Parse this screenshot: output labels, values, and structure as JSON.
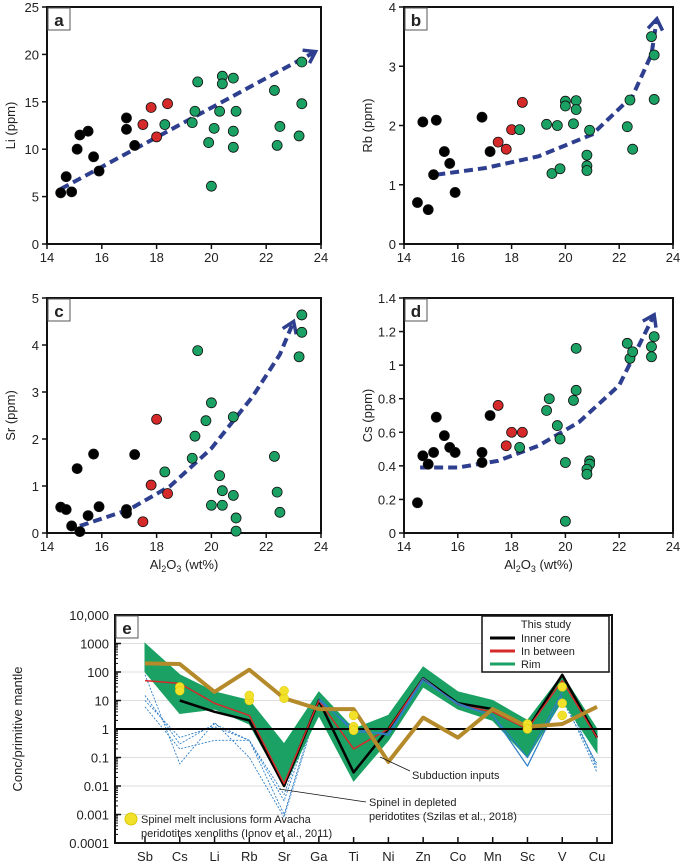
{
  "colors": {
    "inner_core": "#000000",
    "in_between": "#d62a2a",
    "rim": "#1aa163",
    "trend": "#2f3f8f",
    "subduction": "#b58a2a",
    "spinel": "#2f7fc7",
    "melt_inclusion": "#f2e12a"
  },
  "chart_data": [
    {
      "type": "scatter",
      "panel": "a",
      "xlabel": "",
      "ylabel": "Li (ppm)",
      "xlim": [
        14,
        24
      ],
      "ylim": [
        0,
        25
      ],
      "xticks": [
        14,
        16,
        18,
        20,
        22,
        24
      ],
      "yticks": [
        0,
        5,
        10,
        15,
        20,
        25
      ],
      "series": [
        {
          "name": "Inner core",
          "points": [
            [
              14.5,
              5.4
            ],
            [
              14.7,
              7.1
            ],
            [
              14.9,
              5.5
            ],
            [
              15.1,
              10.0
            ],
            [
              15.2,
              11.5
            ],
            [
              15.5,
              11.9
            ],
            [
              15.7,
              9.2
            ],
            [
              15.9,
              7.7
            ],
            [
              16.9,
              13.3
            ],
            [
              16.9,
              12.1
            ],
            [
              17.2,
              10.4
            ]
          ]
        },
        {
          "name": "In between",
          "points": [
            [
              17.5,
              12.6
            ],
            [
              17.8,
              14.4
            ],
            [
              18.0,
              11.3
            ],
            [
              18.4,
              14.8
            ]
          ]
        },
        {
          "name": "Rim",
          "points": [
            [
              18.3,
              12.6
            ],
            [
              19.3,
              12.8
            ],
            [
              19.4,
              14.0
            ],
            [
              19.5,
              17.1
            ],
            [
              19.9,
              10.7
            ],
            [
              20.0,
              6.1
            ],
            [
              20.1,
              12.2
            ],
            [
              20.3,
              14.0
            ],
            [
              20.4,
              17.7
            ],
            [
              20.4,
              16.9
            ],
            [
              20.8,
              17.5
            ],
            [
              20.8,
              11.9
            ],
            [
              20.8,
              10.2
            ],
            [
              20.9,
              14.0
            ],
            [
              22.3,
              16.2
            ],
            [
              22.4,
              10.4
            ],
            [
              22.5,
              12.4
            ],
            [
              23.2,
              11.4
            ],
            [
              23.3,
              14.8
            ],
            [
              23.3,
              19.2
            ]
          ]
        }
      ],
      "trend": [
        [
          14.5,
          5.8
        ],
        [
          23.8,
          20.3
        ]
      ]
    },
    {
      "type": "scatter",
      "panel": "b",
      "xlabel": "",
      "ylabel": "Rb (ppm)",
      "xlim": [
        14,
        24
      ],
      "ylim": [
        0,
        4
      ],
      "xticks": [
        14,
        16,
        18,
        20,
        22,
        24
      ],
      "yticks": [
        0,
        1,
        2,
        3,
        4
      ],
      "series": [
        {
          "name": "Inner core",
          "points": [
            [
              14.5,
              0.7
            ],
            [
              14.7,
              2.06
            ],
            [
              14.9,
              0.58
            ],
            [
              15.1,
              1.17
            ],
            [
              15.2,
              2.09
            ],
            [
              15.5,
              1.56
            ],
            [
              15.7,
              1.36
            ],
            [
              15.9,
              0.87
            ],
            [
              16.9,
              2.14
            ],
            [
              17.2,
              1.56
            ]
          ]
        },
        {
          "name": "In between",
          "points": [
            [
              17.5,
              1.72
            ],
            [
              17.8,
              1.6
            ],
            [
              18.0,
              1.93
            ],
            [
              18.4,
              2.39
            ]
          ]
        },
        {
          "name": "Rim",
          "points": [
            [
              18.3,
              1.93
            ],
            [
              19.3,
              2.02
            ],
            [
              19.5,
              1.19
            ],
            [
              19.7,
              2.0
            ],
            [
              19.8,
              1.27
            ],
            [
              20.0,
              2.41
            ],
            [
              20.0,
              2.33
            ],
            [
              20.3,
              2.03
            ],
            [
              20.4,
              2.42
            ],
            [
              20.4,
              2.27
            ],
            [
              20.8,
              1.5
            ],
            [
              20.8,
              1.32
            ],
            [
              20.8,
              1.24
            ],
            [
              20.9,
              1.92
            ],
            [
              22.3,
              1.98
            ],
            [
              22.4,
              2.43
            ],
            [
              22.5,
              1.6
            ],
            [
              23.2,
              3.5
            ],
            [
              23.3,
              3.19
            ],
            [
              23.3,
              2.44
            ]
          ]
        }
      ],
      "trend": [
        [
          15.2,
          1.17
        ],
        [
          17,
          1.28
        ],
        [
          19,
          1.48
        ],
        [
          21,
          1.85
        ],
        [
          22.5,
          2.5
        ],
        [
          23.2,
          3.2
        ],
        [
          23.4,
          3.8
        ]
      ]
    },
    {
      "type": "scatter",
      "panel": "c",
      "xlabel": "Al2O3 (wt%)",
      "ylabel": "Sr (ppm)",
      "xlim": [
        14,
        24
      ],
      "ylim": [
        0,
        5
      ],
      "xticks": [
        14,
        16,
        18,
        20,
        22,
        24
      ],
      "yticks": [
        0,
        1,
        2,
        3,
        4,
        5
      ],
      "series": [
        {
          "name": "Inner core",
          "points": [
            [
              14.5,
              0.55
            ],
            [
              14.7,
              0.5
            ],
            [
              14.9,
              0.15
            ],
            [
              15.1,
              1.37
            ],
            [
              15.2,
              0.03
            ],
            [
              15.5,
              0.37
            ],
            [
              15.7,
              1.68
            ],
            [
              15.9,
              0.56
            ],
            [
              16.9,
              0.5
            ],
            [
              16.9,
              0.42
            ],
            [
              17.2,
              1.67
            ]
          ]
        },
        {
          "name": "In between",
          "points": [
            [
              17.5,
              0.24
            ],
            [
              17.8,
              1.02
            ],
            [
              18.0,
              2.42
            ],
            [
              18.4,
              0.84
            ]
          ]
        },
        {
          "name": "Rim",
          "points": [
            [
              18.3,
              1.3
            ],
            [
              19.3,
              1.59
            ],
            [
              19.4,
              2.06
            ],
            [
              19.5,
              3.88
            ],
            [
              19.8,
              2.39
            ],
            [
              20.0,
              2.77
            ],
            [
              20.0,
              0.59
            ],
            [
              20.3,
              1.22
            ],
            [
              20.4,
              0.9
            ],
            [
              20.4,
              0.59
            ],
            [
              20.8,
              2.47
            ],
            [
              20.8,
              0.8
            ],
            [
              20.9,
              0.32
            ],
            [
              20.9,
              0.04
            ],
            [
              22.3,
              1.63
            ],
            [
              22.4,
              0.87
            ],
            [
              22.5,
              0.44
            ],
            [
              23.2,
              3.75
            ],
            [
              23.3,
              4.27
            ],
            [
              23.3,
              4.64
            ]
          ]
        }
      ],
      "trend": [
        [
          15.2,
          0.15
        ],
        [
          17,
          0.5
        ],
        [
          18.5,
          1.0
        ],
        [
          20,
          1.8
        ],
        [
          21.5,
          2.9
        ],
        [
          22.5,
          3.8
        ],
        [
          23,
          4.5
        ]
      ]
    },
    {
      "type": "scatter",
      "panel": "d",
      "xlabel": "Al2O3 (wt%)",
      "ylabel": "Cs (ppm)",
      "xlim": [
        14,
        24
      ],
      "ylim": [
        0,
        1.4
      ],
      "xticks": [
        14,
        16,
        18,
        20,
        22,
        24
      ],
      "yticks": [
        0,
        0.2,
        0.4,
        0.6,
        0.8,
        1,
        1.2,
        1.4
      ],
      "series": [
        {
          "name": "Inner core",
          "points": [
            [
              14.5,
              0.18
            ],
            [
              14.7,
              0.46
            ],
            [
              14.9,
              0.41
            ],
            [
              15.1,
              0.48
            ],
            [
              15.2,
              0.69
            ],
            [
              15.5,
              0.58
            ],
            [
              15.7,
              0.51
            ],
            [
              15.9,
              0.48
            ],
            [
              16.9,
              0.48
            ],
            [
              16.9,
              0.42
            ],
            [
              17.2,
              0.7
            ]
          ]
        },
        {
          "name": "In between",
          "points": [
            [
              17.5,
              0.76
            ],
            [
              17.8,
              0.52
            ],
            [
              18.0,
              0.6
            ],
            [
              18.4,
              0.6
            ]
          ]
        },
        {
          "name": "Rim",
          "points": [
            [
              18.3,
              0.51
            ],
            [
              19.3,
              0.73
            ],
            [
              19.4,
              0.8
            ],
            [
              19.7,
              0.64
            ],
            [
              19.8,
              0.56
            ],
            [
              20.0,
              0.42
            ],
            [
              20.0,
              0.07
            ],
            [
              20.3,
              0.79
            ],
            [
              20.4,
              0.85
            ],
            [
              20.4,
              1.1
            ],
            [
              20.9,
              0.43
            ],
            [
              20.9,
              0.41
            ],
            [
              20.8,
              0.38
            ],
            [
              20.8,
              0.35
            ],
            [
              22.3,
              1.13
            ],
            [
              22.4,
              1.04
            ],
            [
              22.5,
              1.08
            ],
            [
              23.2,
              1.05
            ],
            [
              23.2,
              1.11
            ],
            [
              23.3,
              1.17
            ]
          ]
        }
      ],
      "trend": [
        [
          14.6,
          0.39
        ],
        [
          16,
          0.39
        ],
        [
          17.5,
          0.43
        ],
        [
          19,
          0.52
        ],
        [
          20.5,
          0.66
        ],
        [
          22,
          0.88
        ],
        [
          23.3,
          1.3
        ]
      ]
    },
    {
      "type": "line",
      "panel": "e",
      "ylabel": "Conc/primitive mantle",
      "yscale": "log",
      "ylim": [
        0.0001,
        10000
      ],
      "yticks": [
        0.0001,
        0.001,
        0.01,
        0.1,
        1,
        10,
        100,
        1000,
        10000
      ],
      "ytick_labels": [
        "0.0001",
        "0.001",
        "0.01",
        "0.1",
        "1",
        "10",
        "100",
        "1000",
        "10,000"
      ],
      "categories": [
        "Sb",
        "Cs",
        "Li",
        "Rb",
        "Sr",
        "Ga",
        "Ti",
        "Ni",
        "Zn",
        "Co",
        "Mn",
        "Sc",
        "V",
        "Cu"
      ],
      "rim_band": {
        "upper": [
          1000,
          80,
          20,
          10,
          0.3,
          20,
          1,
          3,
          150,
          20,
          10,
          2,
          80,
          1
        ],
        "lower": [
          100,
          3.5,
          5,
          1.5,
          0.01,
          3,
          0.015,
          0.4,
          30,
          5,
          2,
          0.1,
          10,
          0.15
        ]
      },
      "series": [
        {
          "name": "Inner core",
          "values": [
            null,
            10,
            4,
            2,
            0.01,
            10,
            0.03,
            1,
            60,
            8,
            5,
            1,
            80,
            0.5
          ]
        },
        {
          "name": "In between",
          "values": [
            50,
            40,
            8,
            3,
            0.012,
            10,
            0.2,
            1,
            60,
            7,
            4,
            1,
            50,
            0.5
          ]
        },
        {
          "name": "Subduction inputs",
          "values": [
            200,
            190,
            20,
            120,
            12,
            5,
            5,
            0.07,
            2.5,
            0.5,
            5,
            1.2,
            1.5,
            6
          ]
        },
        {
          "name": "Spinel in depleted peridotites",
          "lines": [
            [
              15,
              0.3,
              1.5,
              0.4,
              0.001,
              10,
              1,
              0.6,
              50,
              8,
              3,
              0.05,
              15,
              0.03
            ],
            [
              10,
              0.5,
              1.2,
              0.4,
              0.003,
              12,
              0.8,
              0.7,
              60,
              7,
              3,
              0.1,
              20,
              0.05
            ],
            [
              80,
              0.06,
              1.7,
              0.1,
              0.0008,
              8,
              1.2,
              0.5,
              40,
              6,
              2.5,
              0.2,
              10,
              0.06
            ],
            [
              6,
              0.2,
              0.4,
              0.4,
              0.005,
              15,
              1,
              0.8,
              55,
              9,
              4,
              0.3,
              25,
              0.04
            ]
          ]
        },
        {
          "name": "Spinel melt inclusions",
          "points": [
            [
              "Cs",
              30
            ],
            [
              "Cs",
              22
            ],
            [
              "Rb",
              10
            ],
            [
              "Rb",
              15
            ],
            [
              "Sr",
              12
            ],
            [
              "Sr",
              22
            ],
            [
              "Ti",
              3
            ],
            [
              "Ti",
              1.2
            ],
            [
              "Ti",
              0.9
            ],
            [
              "Sc",
              1.5
            ],
            [
              "Sc",
              1.0
            ],
            [
              "V",
              30
            ],
            [
              "V",
              8
            ],
            [
              "V",
              3
            ]
          ]
        }
      ],
      "legend": {
        "title": "This study",
        "entries": [
          "Inner core",
          "In between",
          "Rim"
        ],
        "placement": "top-right"
      },
      "annotations": {
        "subduction": "Subduction inputs",
        "spinel_line1": "Spinel in depleted",
        "spinel_line2": "peridotites (Szilas et al., 2018)",
        "melt_line1": "Spinel melt inclusions form Avacha",
        "melt_line2": "peridotites xenoliths (Ionov et al., 2011)"
      }
    }
  ]
}
